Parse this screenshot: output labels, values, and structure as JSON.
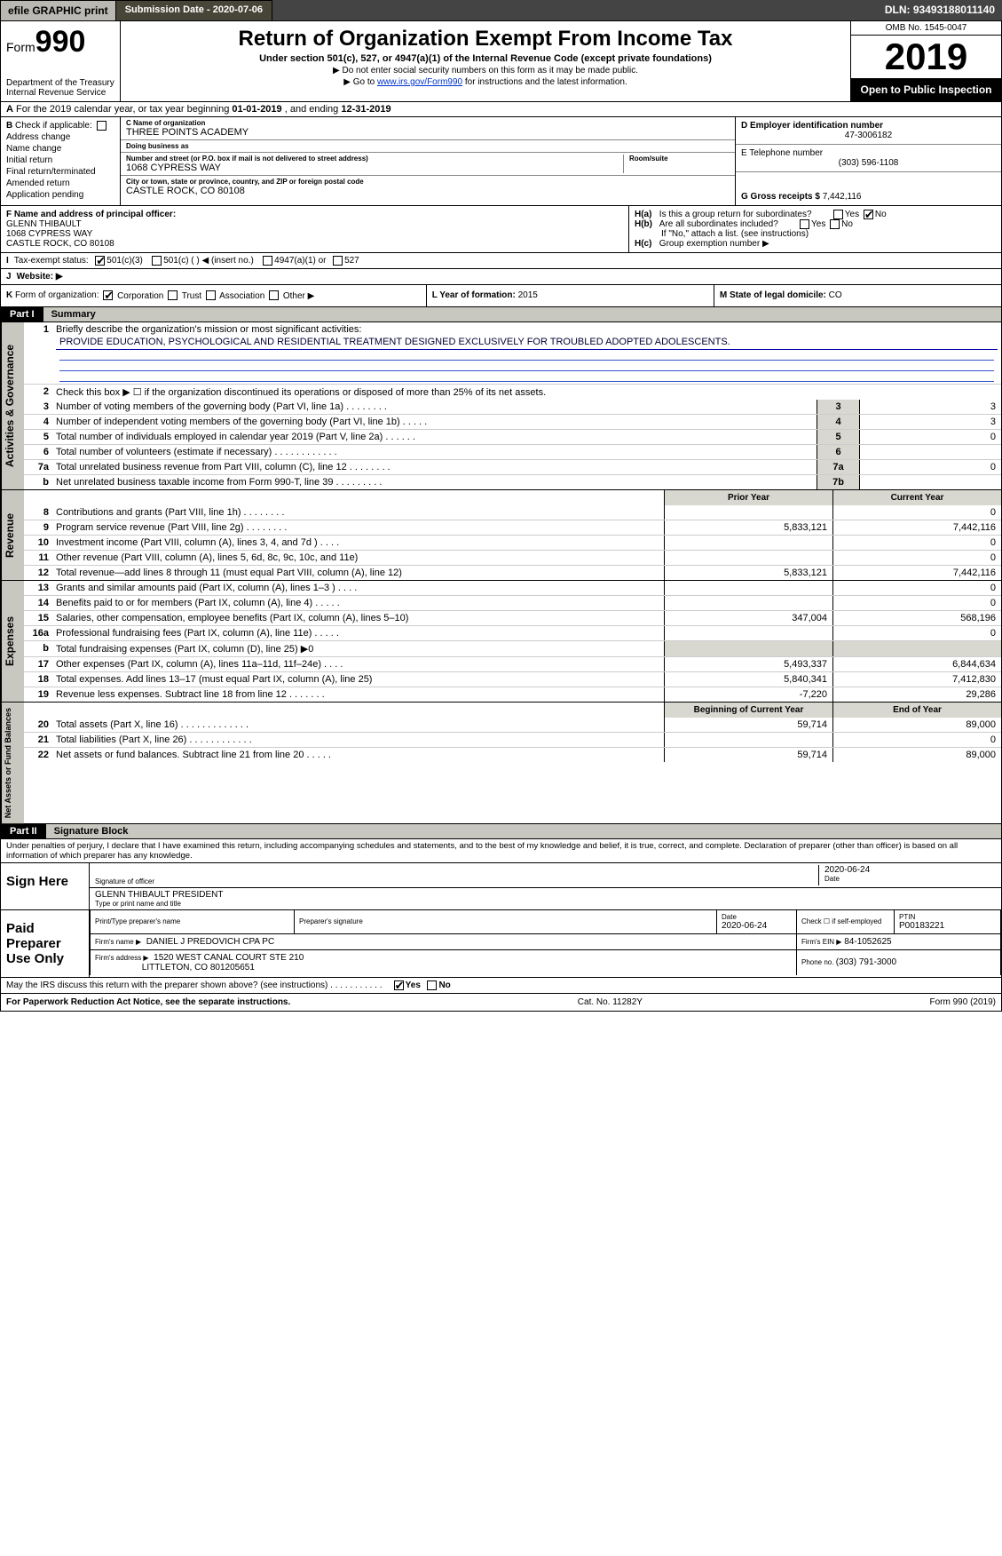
{
  "topbar": {
    "efile": "efile GRAPHIC print",
    "submission": "Submission Date - 2020-07-06",
    "dln": "DLN: 93493188011140"
  },
  "header": {
    "form_prefix": "Form",
    "form_number": "990",
    "title": "Return of Organization Exempt From Income Tax",
    "sub": "Under section 501(c), 527, or 4947(a)(1) of the Internal Revenue Code (except private foundations)",
    "note1": "▶ Do not enter social security numbers on this form as it may be made public.",
    "note2_pre": "▶ Go to ",
    "note2_link": "www.irs.gov/Form990",
    "note2_post": " for instructions and the latest information.",
    "dept": "Department of the Treasury",
    "irs": "Internal Revenue Service",
    "omb": "OMB No. 1545-0047",
    "year": "2019",
    "open": "Open to Public Inspection"
  },
  "rowA": {
    "prefix": "A",
    "text_pre": "For the 2019 calendar year, or tax year beginning ",
    "begin": "01-01-2019",
    "mid": " , and ending ",
    "end": "12-31-2019"
  },
  "colB": {
    "lead": "B",
    "check": "Check if applicable:",
    "items": [
      "Address change",
      "Name change",
      "Initial return",
      "Final return/terminated",
      "Amended return",
      "Application pending"
    ]
  },
  "colC": {
    "name_lbl": "C Name of organization",
    "name": "THREE POINTS ACADEMY",
    "dba_lbl": "Doing business as",
    "dba": "",
    "street_lbl": "Number and street (or P.O. box if mail is not delivered to street address)",
    "street": "1068 CYPRESS WAY",
    "room_lbl": "Room/suite",
    "city_lbl": "City or town, state or province, country, and ZIP or foreign postal code",
    "city": "CASTLE ROCK, CO  80108"
  },
  "colD": {
    "ein_lbl": "D Employer identification number",
    "ein": "47-3006182",
    "tel_lbl": "E Telephone number",
    "tel": "(303) 596-1108",
    "gross_lbl": "G Gross receipts $ ",
    "gross": "7,442,116"
  },
  "rowF": {
    "lbl": "F  Name and address of principal officer:",
    "name": "GLENN THIBAULT",
    "street": "1068 CYPRESS WAY",
    "city": "CASTLE ROCK, CO  80108"
  },
  "rowH": {
    "ha": "H(a)",
    "ha_txt": "Is this a group return for subordinates?",
    "hb": "H(b)",
    "hb_txt": "Are all subordinates included?",
    "hb_note": "If \"No,\" attach a list. (see instructions)",
    "hc": "H(c)",
    "hc_txt": "Group exemption number ▶",
    "yes": "Yes",
    "no": "No"
  },
  "rowI": {
    "lead": "I",
    "lbl": "Tax-exempt status:",
    "o1": "501(c)(3)",
    "o2": "501(c) (  ) ◀ (insert no.)",
    "o3": "4947(a)(1) or",
    "o4": "527"
  },
  "rowJ": {
    "lead": "J",
    "lbl": "Website: ▶"
  },
  "rowK": {
    "lead": "K",
    "lbl": "Form of organization:",
    "opts": [
      "Corporation",
      "Trust",
      "Association",
      "Other ▶"
    ]
  },
  "rowL": {
    "lbl": "L Year of formation: ",
    "val": "2015"
  },
  "rowM": {
    "lbl": "M State of legal domicile: ",
    "val": "CO"
  },
  "part1": {
    "hdr": "Part I",
    "title": "Summary"
  },
  "governance": {
    "label": "Activities & Governance",
    "l1_num": "1",
    "l1": "Briefly describe the organization's mission or most significant activities:",
    "l1_val": "PROVIDE EDUCATION, PSYCHOLOGICAL AND RESIDENTIAL TREATMENT DESIGNED EXCLUSIVELY FOR TROUBLED ADOPTED ADOLESCENTS.",
    "l2_num": "2",
    "l2": "Check this box ▶ ☐ if the organization discontinued its operations or disposed of more than 25% of its net assets.",
    "rows": [
      {
        "n": "3",
        "d": "Number of voting members of the governing body (Part VI, line 1a)   .    .    .    .    .    .    .    .",
        "b": "3",
        "v": "3"
      },
      {
        "n": "4",
        "d": "Number of independent voting members of the governing body (Part VI, line 1b)   .    .    .    .    .",
        "b": "4",
        "v": "3"
      },
      {
        "n": "5",
        "d": "Total number of individuals employed in calendar year 2019 (Part V, line 2a)   .    .    .    .    .    .",
        "b": "5",
        "v": "0"
      },
      {
        "n": "6",
        "d": "Total number of volunteers (estimate if necessary)   .    .    .    .    .    .    .    .    .    .    .    .",
        "b": "6",
        "v": ""
      },
      {
        "n": "7a",
        "d": "Total unrelated business revenue from Part VIII, column (C), line 12   .    .    .    .    .    .    .    .",
        "b": "7a",
        "v": "0"
      },
      {
        "n": "b",
        "d": "Net unrelated business taxable income from Form 990-T, line 39   .    .    .    .    .    .    .    .    .",
        "b": "7b",
        "v": ""
      }
    ]
  },
  "cols": {
    "py": "Prior Year",
    "cy": "Current Year",
    "boy": "Beginning of Current Year",
    "eoy": "End of Year"
  },
  "revenue": {
    "label": "Revenue",
    "rows": [
      {
        "n": "8",
        "d": "Contributions and grants (Part VIII, line 1h)   .    .    .    .    .    .    .    .",
        "py": "",
        "cy": "0"
      },
      {
        "n": "9",
        "d": "Program service revenue (Part VIII, line 2g)   .    .    .    .    .    .    .    .",
        "py": "5,833,121",
        "cy": "7,442,116"
      },
      {
        "n": "10",
        "d": "Investment income (Part VIII, column (A), lines 3, 4, and 7d )   .    .    .    .",
        "py": "",
        "cy": "0"
      },
      {
        "n": "11",
        "d": "Other revenue (Part VIII, column (A), lines 5, 6d, 8c, 9c, 10c, and 11e)",
        "py": "",
        "cy": "0"
      },
      {
        "n": "12",
        "d": "Total revenue—add lines 8 through 11 (must equal Part VIII, column (A), line 12)",
        "py": "5,833,121",
        "cy": "7,442,116"
      }
    ]
  },
  "expenses": {
    "label": "Expenses",
    "rows": [
      {
        "n": "13",
        "d": "Grants and similar amounts paid (Part IX, column (A), lines 1–3 )   .    .    .    .",
        "py": "",
        "cy": "0"
      },
      {
        "n": "14",
        "d": "Benefits paid to or for members (Part IX, column (A), line 4)   .    .    .    .    .",
        "py": "",
        "cy": "0"
      },
      {
        "n": "15",
        "d": "Salaries, other compensation, employee benefits (Part IX, column (A), lines 5–10)",
        "py": "347,004",
        "cy": "568,196"
      },
      {
        "n": "16a",
        "d": "Professional fundraising fees (Part IX, column (A), line 11e)   .    .    .    .    .",
        "py": "",
        "cy": "0"
      },
      {
        "n": "b",
        "d": "Total fundraising expenses (Part IX, column (D), line 25) ▶0",
        "py": "—hide—",
        "cy": "—hide—"
      },
      {
        "n": "17",
        "d": "Other expenses (Part IX, column (A), lines 11a–11d, 11f–24e)   .    .    .    .",
        "py": "5,493,337",
        "cy": "6,844,634"
      },
      {
        "n": "18",
        "d": "Total expenses. Add lines 13–17 (must equal Part IX, column (A), line 25)",
        "py": "5,840,341",
        "cy": "7,412,830"
      },
      {
        "n": "19",
        "d": "Revenue less expenses. Subtract line 18 from line 12   .    .    .    .    .    .    .",
        "py": "-7,220",
        "cy": "29,286"
      }
    ]
  },
  "netassets": {
    "label": "Net Assets or Fund Balances",
    "rows": [
      {
        "n": "20",
        "d": "Total assets (Part X, line 16)   .    .    .    .    .    .    .    .    .    .    .    .    .",
        "py": "59,714",
        "cy": "89,000"
      },
      {
        "n": "21",
        "d": "Total liabilities (Part X, line 26)   .    .    .    .    .    .    .    .    .    .    .    .",
        "py": "",
        "cy": "0"
      },
      {
        "n": "22",
        "d": "Net assets or fund balances. Subtract line 21 from line 20   .    .    .    .    .",
        "py": "59,714",
        "cy": "89,000"
      }
    ]
  },
  "part2": {
    "hdr": "Part II",
    "title": "Signature Block"
  },
  "perjury": "Under penalties of perjury, I declare that I have examined this return, including accompanying schedules and statements, and to the best of my knowledge and belief, it is true, correct, and complete. Declaration of preparer (other than officer) is based on all information of which preparer has any knowledge.",
  "sign": {
    "label": "Sign Here",
    "sig_lbl": "Signature of officer",
    "date_lbl": "Date",
    "date": "2020-06-24",
    "name": "GLENN THIBAULT  PRESIDENT",
    "name_lbl": "Type or print name and title"
  },
  "paid": {
    "label": "Paid Preparer Use Only",
    "h_name": "Print/Type preparer's name",
    "h_sig": "Preparer's signature",
    "h_date": "Date",
    "date": "2020-06-24",
    "h_check": "Check ☐ if self-employed",
    "h_ptin": "PTIN",
    "ptin": "P00183221",
    "firm_lbl": "Firm's name    ▶",
    "firm": "DANIEL J PREDOVICH CPA PC",
    "ein_lbl": "Firm's EIN ▶",
    "ein": "84-1052625",
    "addr_lbl": "Firm's address ▶",
    "addr1": "1520 WEST CANAL COURT STE 210",
    "addr2": "LITTLETON, CO  801205651",
    "phone_lbl": "Phone no. ",
    "phone": "(303) 791-3000"
  },
  "may_discuss": "May the IRS discuss this return with the preparer shown above? (see instructions)   .    .    .    .    .    .    .    .    .    .    .",
  "footer": {
    "left": "For Paperwork Reduction Act Notice, see the separate instructions.",
    "mid": "Cat. No. 11282Y",
    "right": "Form 990 (2019)"
  },
  "colors": {
    "topbar_dark": "#474537",
    "band_gray": "#c8c8c0",
    "cell_gray": "#d8d8d0",
    "link": "#0033cc"
  }
}
